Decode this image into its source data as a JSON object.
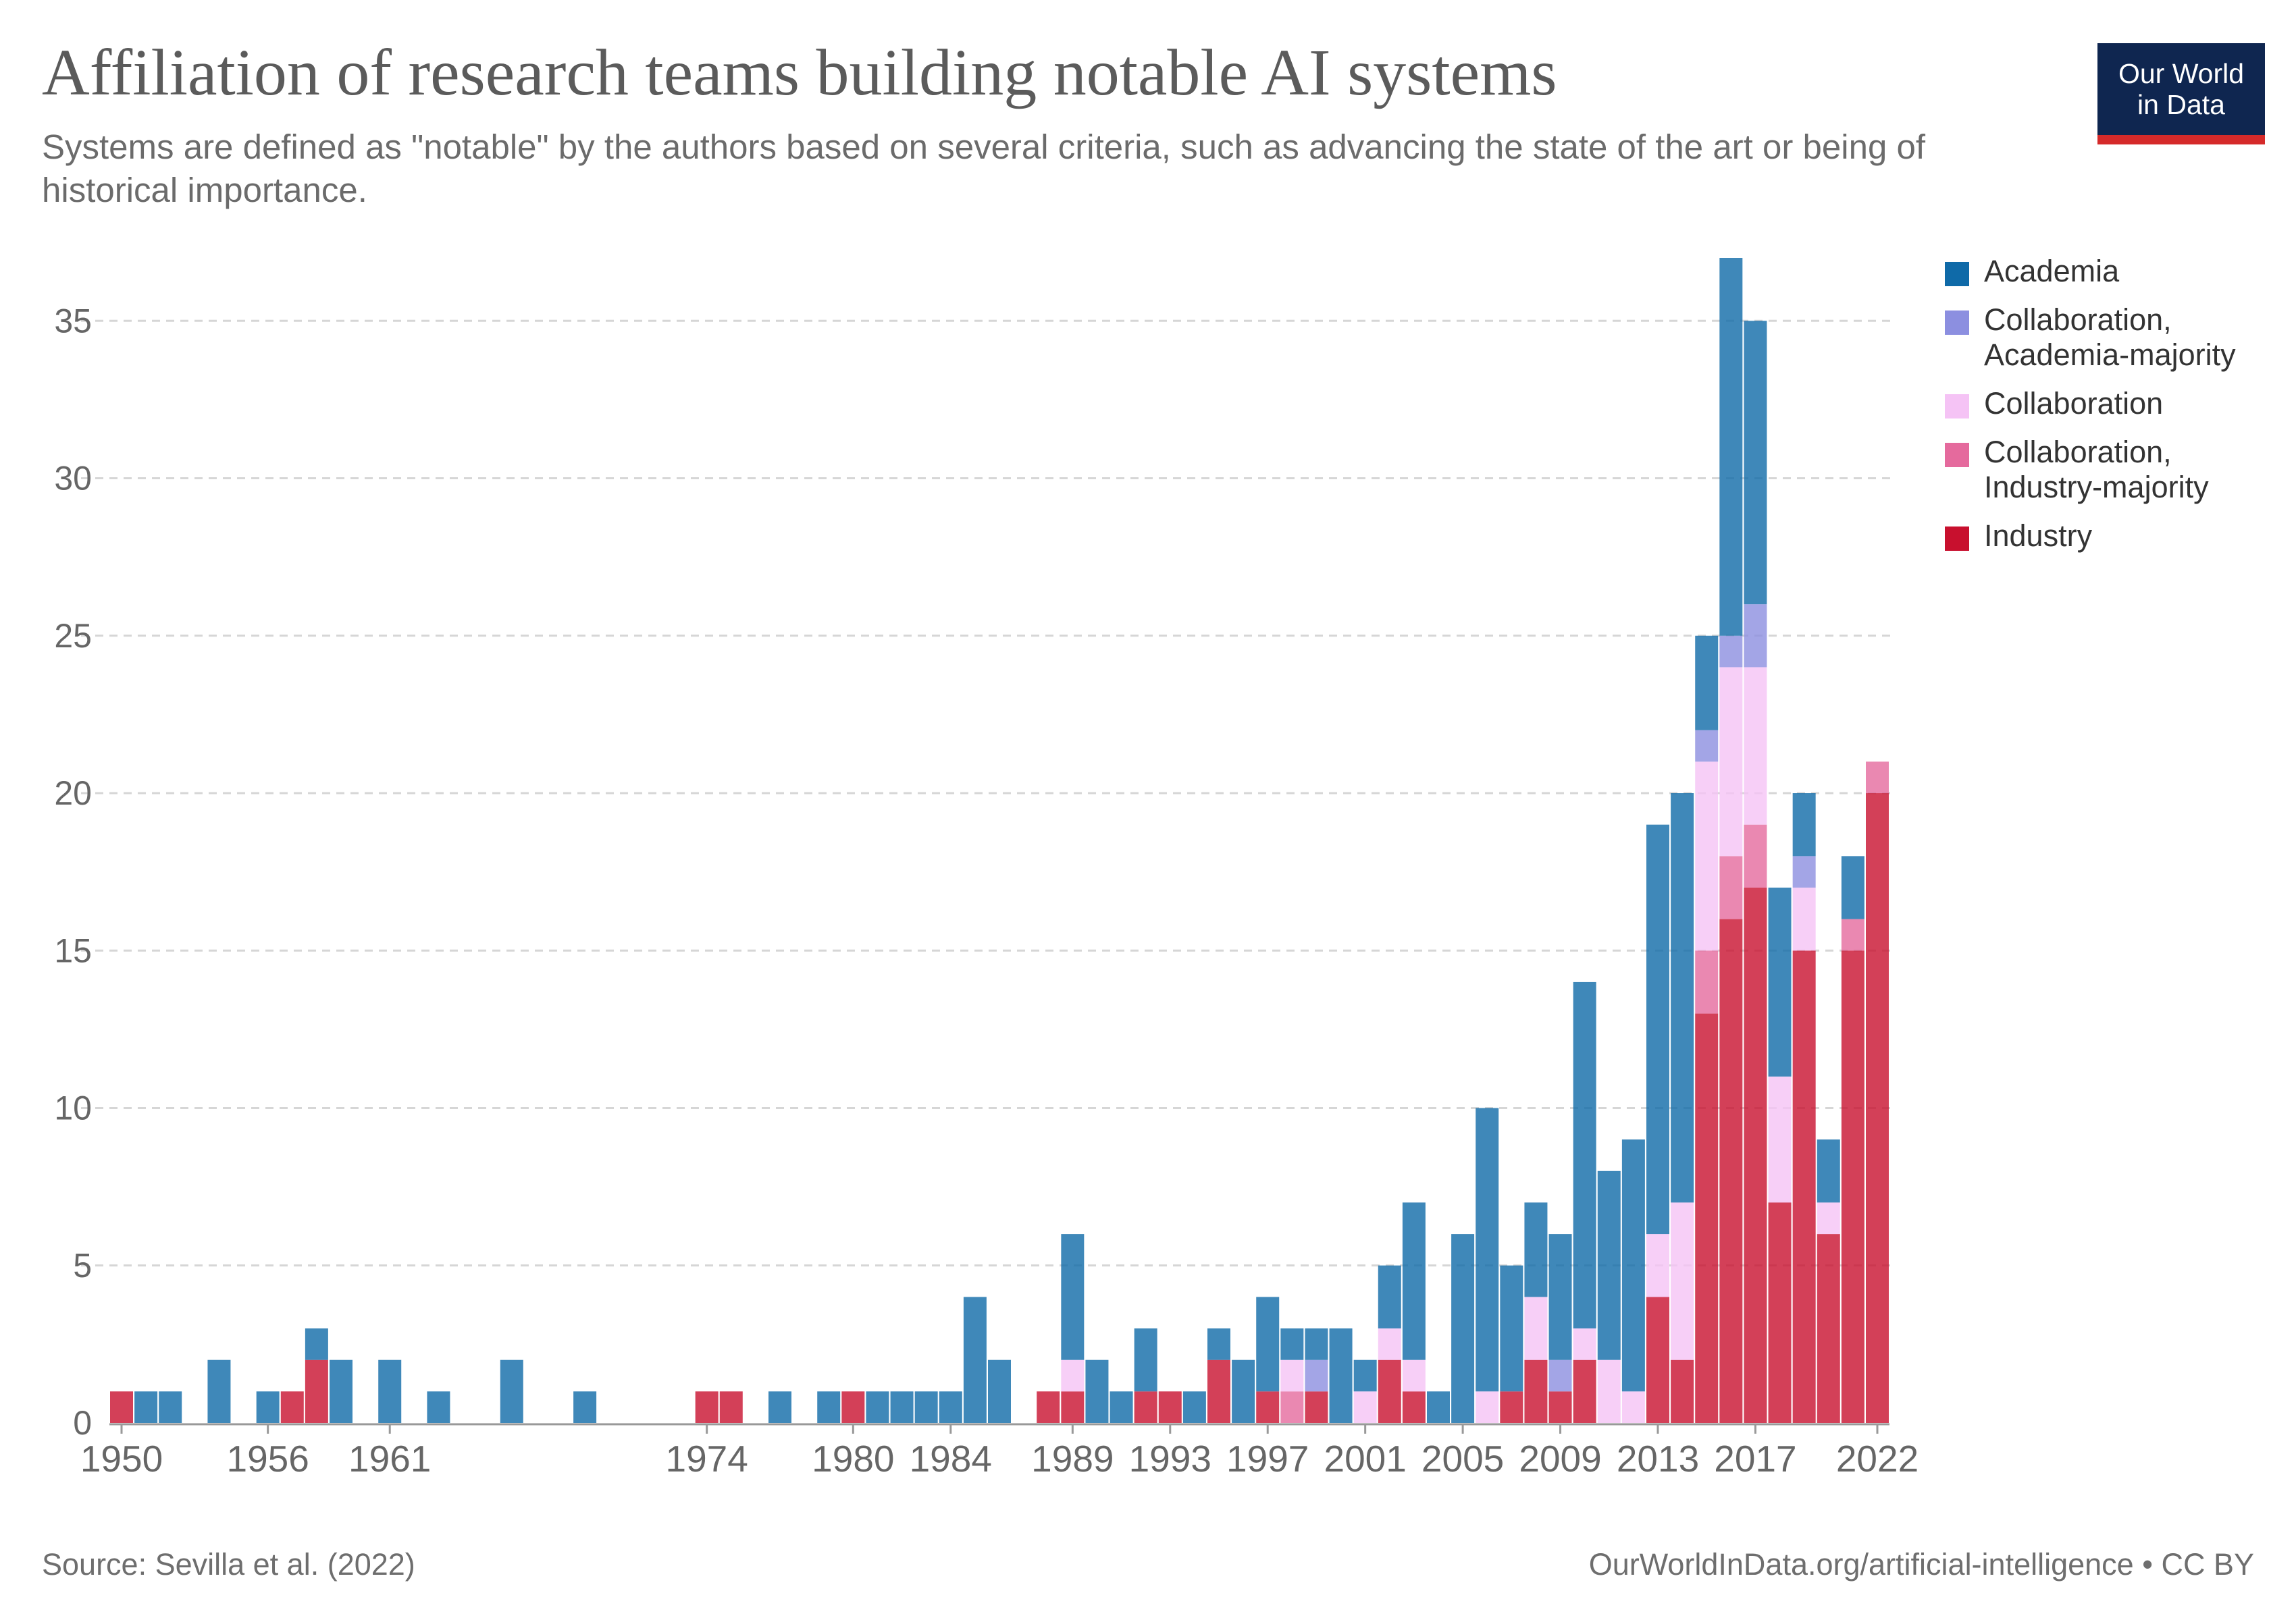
{
  "header": {
    "title": "Affiliation of research teams building notable AI systems",
    "subtitle": "Systems are defined as \"notable\" by the authors based on several criteria, such as advancing the state of the art or being of historical importance.",
    "logo_line1": "Our World",
    "logo_line2": "in Data"
  },
  "footer": {
    "source": "Source: Sevilla et al. (2022)",
    "credit": "OurWorldInData.org/artificial-intelligence • CC BY"
  },
  "colors": {
    "logo_background": "#0f2650",
    "logo_accent": "#d52a2a"
  },
  "chart_data": {
    "type": "bar",
    "stacked": true,
    "ylim": [
      0,
      37
    ],
    "yticks": [
      0,
      5,
      10,
      15,
      20,
      25,
      30,
      35
    ],
    "grid": "horizontal dashed",
    "legend_position": "right",
    "x_tick_labels": [
      "1950",
      "1956",
      "1961",
      "1974",
      "1980",
      "1984",
      "1989",
      "1993",
      "1997",
      "2001",
      "2005",
      "2009",
      "2013",
      "2017",
      "2022"
    ],
    "series": [
      {
        "name": "Academia",
        "color": "#0f6aa8"
      },
      {
        "name": "Collaboration,\nAcademia-majority",
        "color": "#8c8fe0"
      },
      {
        "name": "Collaboration",
        "color": "#f5c3f5"
      },
      {
        "name": "Collaboration,\nIndustry-majority",
        "color": "#e56a9d"
      },
      {
        "name": "Industry",
        "color": "#c8102e"
      }
    ],
    "bars": [
      {
        "x": "1950",
        "values": [
          0,
          0,
          0,
          0,
          1
        ]
      },
      {
        "x": "1951",
        "values": [
          1,
          0,
          0,
          0,
          0
        ]
      },
      {
        "x": "1952",
        "values": [
          1,
          0,
          0,
          0,
          0
        ]
      },
      {
        "x": "1954",
        "values": [
          2,
          0,
          0,
          0,
          0
        ]
      },
      {
        "x": "1956",
        "values": [
          1,
          0,
          0,
          0,
          0
        ]
      },
      {
        "x": "1957",
        "values": [
          0,
          0,
          0,
          0,
          1
        ]
      },
      {
        "x": "1958",
        "values": [
          1,
          0,
          0,
          0,
          2
        ]
      },
      {
        "x": "1959",
        "values": [
          2,
          0,
          0,
          0,
          0
        ]
      },
      {
        "x": "1961",
        "values": [
          2,
          0,
          0,
          0,
          0
        ]
      },
      {
        "x": "1963",
        "values": [
          1,
          0,
          0,
          0,
          0
        ]
      },
      {
        "x": "1966",
        "values": [
          2,
          0,
          0,
          0,
          0
        ]
      },
      {
        "x": "1969",
        "values": [
          1,
          0,
          0,
          0,
          0
        ]
      },
      {
        "x": "1974",
        "values": [
          0,
          0,
          0,
          0,
          1
        ]
      },
      {
        "x": "1975",
        "values": [
          0,
          0,
          0,
          0,
          1
        ]
      },
      {
        "x": "1977",
        "values": [
          1,
          0,
          0,
          0,
          0
        ]
      },
      {
        "x": "1979",
        "values": [
          1,
          0,
          0,
          0,
          0
        ]
      },
      {
        "x": "1980",
        "values": [
          0,
          0,
          0,
          0,
          1
        ]
      },
      {
        "x": "1981",
        "values": [
          1,
          0,
          0,
          0,
          0
        ]
      },
      {
        "x": "1982",
        "values": [
          1,
          0,
          0,
          0,
          0
        ]
      },
      {
        "x": "1983",
        "values": [
          1,
          0,
          0,
          0,
          0
        ]
      },
      {
        "x": "1984",
        "values": [
          1,
          0,
          0,
          0,
          0
        ]
      },
      {
        "x": "1985",
        "values": [
          4,
          0,
          0,
          0,
          0
        ]
      },
      {
        "x": "1986",
        "values": [
          2,
          0,
          0,
          0,
          0
        ]
      },
      {
        "x": "1988",
        "values": [
          0,
          0,
          0,
          0,
          1
        ]
      },
      {
        "x": "1989",
        "values": [
          4,
          0,
          1,
          0,
          1
        ]
      },
      {
        "x": "1990",
        "values": [
          2,
          0,
          0,
          0,
          0
        ]
      },
      {
        "x": "1991",
        "values": [
          1,
          0,
          0,
          0,
          0
        ]
      },
      {
        "x": "1992",
        "values": [
          2,
          0,
          0,
          0,
          1
        ]
      },
      {
        "x": "1993",
        "values": [
          0,
          0,
          0,
          0,
          1
        ]
      },
      {
        "x": "1994",
        "values": [
          1,
          0,
          0,
          0,
          0
        ]
      },
      {
        "x": "1995",
        "values": [
          1,
          0,
          0,
          0,
          2
        ]
      },
      {
        "x": "1996",
        "values": [
          2,
          0,
          0,
          0,
          0
        ]
      },
      {
        "x": "1997",
        "values": [
          3,
          0,
          0,
          0,
          1
        ]
      },
      {
        "x": "1998",
        "values": [
          1,
          0,
          1,
          1,
          0
        ]
      },
      {
        "x": "1999",
        "values": [
          1,
          1,
          0,
          0,
          1
        ]
      },
      {
        "x": "2000",
        "values": [
          3,
          0,
          0,
          0,
          0
        ]
      },
      {
        "x": "2001",
        "values": [
          1,
          0,
          1,
          0,
          0
        ]
      },
      {
        "x": "2002",
        "values": [
          2,
          0,
          1,
          0,
          2
        ]
      },
      {
        "x": "2003",
        "values": [
          5,
          0,
          1,
          0,
          1
        ]
      },
      {
        "x": "2004",
        "values": [
          1,
          0,
          0,
          0,
          0
        ]
      },
      {
        "x": "2005",
        "values": [
          6,
          0,
          0,
          0,
          0
        ]
      },
      {
        "x": "2006",
        "values": [
          9,
          0,
          1,
          0,
          0
        ]
      },
      {
        "x": "2007",
        "values": [
          4,
          0,
          0,
          0,
          1
        ]
      },
      {
        "x": "2008",
        "values": [
          3,
          0,
          2,
          0,
          2
        ]
      },
      {
        "x": "2009",
        "values": [
          4,
          1,
          0,
          0,
          1
        ]
      },
      {
        "x": "2010",
        "values": [
          11,
          0,
          1,
          0,
          2
        ]
      },
      {
        "x": "2011",
        "values": [
          6,
          0,
          2,
          0,
          0
        ]
      },
      {
        "x": "2012",
        "values": [
          8,
          0,
          1,
          0,
          0
        ]
      },
      {
        "x": "2013",
        "values": [
          13,
          0,
          2,
          0,
          4
        ]
      },
      {
        "x": "2014",
        "values": [
          13,
          0,
          5,
          0,
          2
        ]
      },
      {
        "x": "2015",
        "values": [
          3,
          1,
          6,
          2,
          13
        ]
      },
      {
        "x": "2016",
        "values": [
          12,
          1,
          6,
          2,
          16
        ]
      },
      {
        "x": "2017",
        "values": [
          9,
          2,
          5,
          2,
          17
        ]
      },
      {
        "x": "2018",
        "values": [
          6,
          0,
          4,
          0,
          7
        ]
      },
      {
        "x": "2019",
        "values": [
          2,
          1,
          2,
          0,
          15
        ]
      },
      {
        "x": "2020",
        "values": [
          2,
          0,
          1,
          0,
          6
        ]
      },
      {
        "x": "2021",
        "values": [
          2,
          0,
          0,
          1,
          15
        ]
      },
      {
        "x": "2022",
        "values": [
          0,
          0,
          0,
          1,
          20
        ]
      }
    ]
  }
}
